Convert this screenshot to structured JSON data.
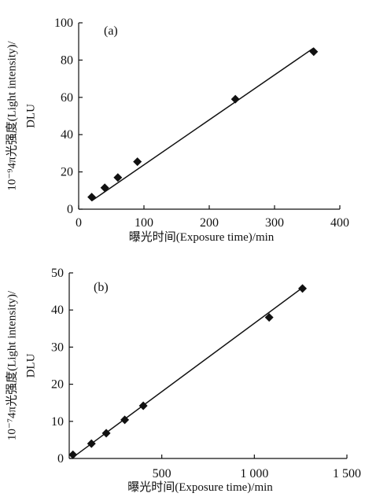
{
  "chart_data": [
    {
      "type": "scatter",
      "panel_label": "(a)",
      "x": [
        20,
        40,
        60,
        90,
        240,
        360
      ],
      "y": [
        6.5,
        11.5,
        17,
        25.5,
        59,
        84.5
      ],
      "fit_line": {
        "x": [
          20,
          360
        ],
        "y": [
          4.5,
          86.5
        ]
      },
      "xlim": [
        0,
        400
      ],
      "ylim": [
        0,
        100
      ],
      "xticks": [
        0,
        100,
        200,
        300,
        400
      ],
      "yticks": [
        0,
        20,
        40,
        60,
        80,
        100
      ],
      "xlabel": "曝光时间(Exposure time)/min",
      "ylabel_line1": "10⁻⁹4π光强度(Light intensity)/",
      "ylabel_line2": "DLU",
      "marker": "diamond",
      "grid": false
    },
    {
      "type": "scatter",
      "panel_label": "(b)",
      "x": [
        20,
        120,
        200,
        300,
        400,
        1080,
        1260
      ],
      "y": [
        1,
        4,
        6.8,
        10.4,
        14.2,
        38,
        45.8
      ],
      "fit_line": {
        "x": [
          20,
          1260
        ],
        "y": [
          0.3,
          46
        ]
      },
      "xlim": [
        0,
        1500
      ],
      "ylim": [
        0,
        50
      ],
      "xticks": [
        500,
        1000,
        1500
      ],
      "xtick_labels": [
        "500",
        "1 000",
        "1 500"
      ],
      "yticks": [
        0,
        10,
        20,
        30,
        40,
        50
      ],
      "xlabel": "曝光时间(Exposure time)/min",
      "ylabel_line1": "10⁻⁷4π光强度(Light intensity)/",
      "ylabel_line2": "DLU",
      "marker": "diamond",
      "grid": false
    }
  ]
}
